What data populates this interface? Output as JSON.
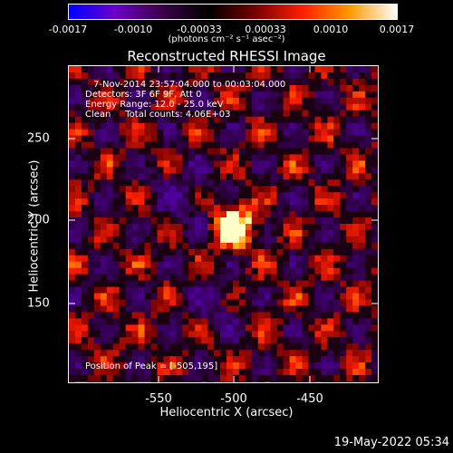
{
  "colorbar": {
    "ticks": [
      "-0.0017",
      "-0.0010",
      "-0.00033",
      "0.00033",
      "0.0010",
      "0.0017"
    ],
    "unit": "(photons cm⁻² s⁻¹ asec⁻²)",
    "colors": [
      "#0000ff",
      "#6a00c8",
      "#3a0046",
      "#000000",
      "#7a0000",
      "#ff2000",
      "#ff9a00",
      "#ffffff"
    ]
  },
  "title": "Reconstructed RHESSI Image",
  "info": {
    "time": "7-Nov-2014 23:57:04.000 to 00:03:04.000",
    "detectors": "Detectors: 3F 6F 9F, Att 0",
    "energy": "Energy Range: 12.0 - 25.0 keV",
    "clean": "Clean     Total counts: 4.06E+03",
    "peak": "Position of Peak = [-505,195]"
  },
  "axes": {
    "xlabel": "Heliocentric X (arcsec)",
    "ylabel": "Heliocentric Y (arcsec)",
    "xticks": [
      "-550",
      "-500",
      "-450"
    ],
    "yticks": [
      "250",
      "200",
      "150"
    ]
  },
  "footer": "19-May-2022 05:34"
}
